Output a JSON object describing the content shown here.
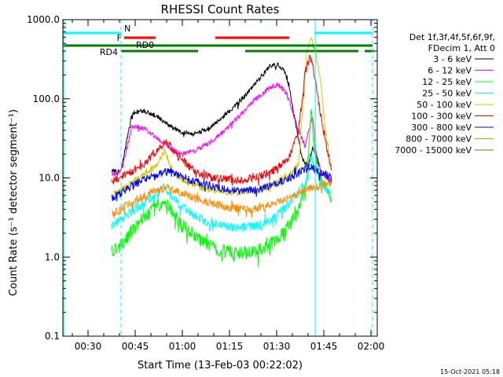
{
  "chart_data": {
    "type": "line",
    "title": "RHESSI Count Rates",
    "xlabel": "Start Time (13-Feb-03 00:22:02)",
    "ylabel": "Count Rate (s⁻¹ detector segment⁻¹)",
    "yscale": "log",
    "ylim": [
      0.1,
      1000.0
    ],
    "xlim_minutes": [
      22.0,
      122.0
    ],
    "x_ticks": [
      {
        "minutes": 30,
        "label": "00:30"
      },
      {
        "minutes": 45,
        "label": "00:45"
      },
      {
        "minutes": 60,
        "label": "01:00"
      },
      {
        "minutes": 75,
        "label": "01:15"
      },
      {
        "minutes": 90,
        "label": "01:30"
      },
      {
        "minutes": 105,
        "label": "01:45"
      },
      {
        "minutes": 120,
        "label": "02:00"
      }
    ],
    "y_ticks": [
      {
        "value": 0.1,
        "label": "0.1"
      },
      {
        "value": 1.0,
        "label": "1.0"
      },
      {
        "value": 10.0,
        "label": "10.0"
      },
      {
        "value": 100.0,
        "label": "100.0"
      },
      {
        "value": 1000.0,
        "label": "1000.0"
      }
    ],
    "legend_header": [
      "Det 1f,3f,4f,5f,6f,9f,",
      "FDecim 1, Att 0"
    ],
    "series": [
      {
        "name": "3 - 6 keV",
        "color": "#000000",
        "x": [
          37.5,
          40.5,
          44,
          48,
          52,
          56,
          60,
          64,
          68,
          72,
          76,
          80,
          84,
          88,
          90.5,
          92.5,
          94,
          96,
          98,
          100,
          101.5,
          103,
          104,
          106,
          107.5
        ],
        "y": [
          12,
          12.5,
          65,
          70,
          60,
          45,
          38,
          36,
          42,
          55,
          75,
          110,
          170,
          260,
          270,
          230,
          140,
          50,
          18,
          14,
          25,
          17,
          12,
          10,
          9
        ]
      },
      {
        "name": "6 - 12 keV",
        "color": "#ff00ff",
        "x": [
          37.5,
          40.5,
          44,
          48,
          52,
          56,
          60,
          64,
          68,
          72,
          76,
          80,
          84,
          88,
          90.5,
          93,
          95,
          97,
          99,
          100.5,
          101.5,
          102.5,
          104,
          106,
          107.5
        ],
        "y": [
          11,
          12,
          45,
          42,
          32,
          24,
          20,
          22,
          27,
          35,
          50,
          72,
          105,
          140,
          150,
          120,
          70,
          40,
          25,
          45,
          60,
          22,
          12,
          10,
          9
        ]
      },
      {
        "name": "12 - 25 keV",
        "color": "#00ff00",
        "x": [
          37.5,
          40.5,
          44,
          48,
          52,
          54.5,
          57,
          61,
          66,
          72,
          78,
          84,
          90,
          94,
          97,
          99.5,
          101,
          102,
          103.5,
          105,
          107.5
        ],
        "y": [
          1.2,
          1.4,
          2.2,
          3.2,
          4.5,
          5.2,
          3.5,
          2.3,
          1.6,
          1.2,
          1.1,
          1.2,
          1.6,
          2.5,
          3.8,
          9,
          65,
          25,
          10,
          8,
          5
        ]
      },
      {
        "name": "25 - 50 keV",
        "color": "#00ffff",
        "x": [
          37.5,
          40.5,
          44,
          48,
          52,
          54.5,
          57,
          61,
          66,
          72,
          78,
          84,
          90,
          94,
          97,
          99.5,
          101,
          102,
          103.5,
          105,
          107.5
        ],
        "y": [
          2.5,
          3.0,
          3.8,
          4.8,
          6.5,
          7.5,
          5.5,
          4.0,
          3.0,
          2.5,
          2.3,
          2.5,
          3.2,
          4.8,
          6.5,
          9,
          18,
          14,
          10,
          8,
          6
        ]
      },
      {
        "name": "50 - 100 keV",
        "color": "#cccc00",
        "x": [
          37.5,
          40.5,
          44,
          48,
          52,
          54.5,
          57,
          61,
          66,
          72,
          78,
          84,
          90,
          94,
          97,
          99.5,
          101,
          102.5,
          104,
          105.5,
          107.5
        ],
        "y": [
          6,
          7,
          9,
          11,
          15,
          22,
          12,
          9,
          7.5,
          6.8,
          6.5,
          7,
          8.5,
          11,
          15,
          380,
          560,
          400,
          160,
          40,
          12
        ]
      },
      {
        "name": "100 - 300 keV",
        "color": "#ff0000",
        "x": [
          37.5,
          40.5,
          44,
          48,
          52,
          55,
          58,
          62,
          66,
          70,
          75,
          80,
          85,
          90,
          94,
          97,
          99,
          100.5,
          101.5,
          102.5,
          104,
          106,
          107.5
        ],
        "y": [
          9,
          10,
          12,
          15,
          22,
          29,
          20,
          14,
          11,
          10,
          9.5,
          9.5,
          10.5,
          13,
          18,
          40,
          200,
          360,
          260,
          150,
          60,
          25,
          12
        ]
      },
      {
        "name": "300 - 800 keV",
        "color": "#0000ff",
        "x": [
          37.5,
          40.5,
          44,
          48,
          52,
          55,
          58,
          62,
          66,
          70,
          75,
          80,
          85,
          90,
          94,
          97,
          99,
          100.5,
          102,
          104,
          106,
          107.5
        ],
        "y": [
          5.5,
          6.5,
          8,
          9.5,
          11,
          12,
          11,
          9.5,
          8.5,
          7.8,
          7,
          6.8,
          7.2,
          8.5,
          10,
          11.5,
          13,
          14,
          13,
          12,
          11,
          10
        ]
      },
      {
        "name": "800 - 7000 keV",
        "color": "#ff8c00",
        "x": [
          37.5,
          40.5,
          44,
          48,
          52,
          55,
          58,
          62,
          66,
          70,
          75,
          80,
          85,
          90,
          94,
          97,
          99,
          100.5,
          102,
          104,
          106,
          107.5
        ],
        "y": [
          3.5,
          4,
          5,
          6,
          7,
          7.5,
          6.8,
          6,
          5.2,
          4.7,
          4.2,
          4,
          4.2,
          4.8,
          5.6,
          6.3,
          7,
          7.5,
          7.5,
          8,
          8.3,
          8
        ]
      },
      {
        "name": "7000 - 15000 keV",
        "color": "#996600",
        "x": [],
        "y": []
      }
    ],
    "status_bars": [
      {
        "label": "N",
        "color": "#00ffff",
        "segments": [
          [
            22,
            40.5
          ],
          [
            102,
            120.5
          ]
        ]
      },
      {
        "label": "F",
        "color": "#ff0000",
        "segments": [
          [
            41.5,
            51.5
          ],
          [
            70.5,
            94
          ]
        ]
      },
      {
        "label": "RD0",
        "color": "#008000",
        "segments": [
          [
            22,
            120.5
          ]
        ]
      },
      {
        "label": "RD4",
        "color": "#008000",
        "segments": [
          [
            40.5,
            65
          ],
          [
            80,
            116
          ],
          [
            118,
            121
          ]
        ]
      }
    ],
    "vertical_lines": [
      {
        "minutes": 22.3,
        "style": "solid",
        "color": "#00ffff"
      },
      {
        "minutes": 40.5,
        "style": "dashed",
        "color": "#00ffff"
      },
      {
        "minutes": 102.3,
        "style": "solid",
        "color": "#00ffff"
      },
      {
        "minutes": 120.5,
        "style": "dashed",
        "color": "#00ffff"
      }
    ]
  },
  "footer_timestamp": "15-Oct-2021 05:18"
}
